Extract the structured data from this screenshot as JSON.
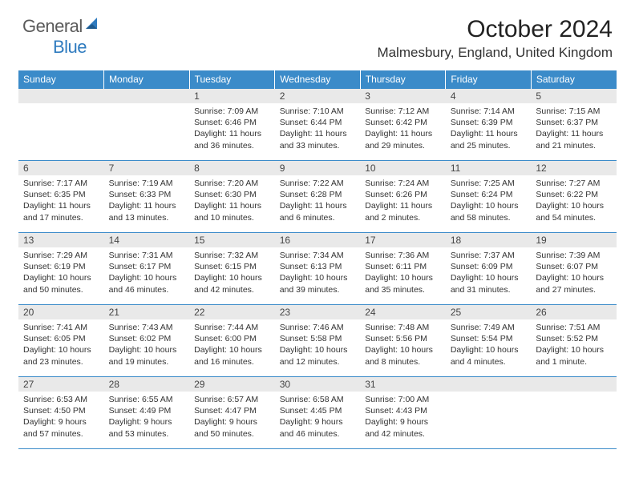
{
  "logo": {
    "general": "General",
    "blue": "Blue"
  },
  "title": "October 2024",
  "location": "Malmesbury, England, United Kingdom",
  "calendar": {
    "header_bg": "#3b8bc9",
    "daynum_bg": "#e9e9e9",
    "border_color": "#3b8bc9",
    "day_headers": [
      "Sunday",
      "Monday",
      "Tuesday",
      "Wednesday",
      "Thursday",
      "Friday",
      "Saturday"
    ],
    "weeks": [
      [
        null,
        null,
        {
          "n": "1",
          "sunrise": "7:09 AM",
          "sunset": "6:46 PM",
          "daylight": "11 hours and 36 minutes."
        },
        {
          "n": "2",
          "sunrise": "7:10 AM",
          "sunset": "6:44 PM",
          "daylight": "11 hours and 33 minutes."
        },
        {
          "n": "3",
          "sunrise": "7:12 AM",
          "sunset": "6:42 PM",
          "daylight": "11 hours and 29 minutes."
        },
        {
          "n": "4",
          "sunrise": "7:14 AM",
          "sunset": "6:39 PM",
          "daylight": "11 hours and 25 minutes."
        },
        {
          "n": "5",
          "sunrise": "7:15 AM",
          "sunset": "6:37 PM",
          "daylight": "11 hours and 21 minutes."
        }
      ],
      [
        {
          "n": "6",
          "sunrise": "7:17 AM",
          "sunset": "6:35 PM",
          "daylight": "11 hours and 17 minutes."
        },
        {
          "n": "7",
          "sunrise": "7:19 AM",
          "sunset": "6:33 PM",
          "daylight": "11 hours and 13 minutes."
        },
        {
          "n": "8",
          "sunrise": "7:20 AM",
          "sunset": "6:30 PM",
          "daylight": "11 hours and 10 minutes."
        },
        {
          "n": "9",
          "sunrise": "7:22 AM",
          "sunset": "6:28 PM",
          "daylight": "11 hours and 6 minutes."
        },
        {
          "n": "10",
          "sunrise": "7:24 AM",
          "sunset": "6:26 PM",
          "daylight": "11 hours and 2 minutes."
        },
        {
          "n": "11",
          "sunrise": "7:25 AM",
          "sunset": "6:24 PM",
          "daylight": "10 hours and 58 minutes."
        },
        {
          "n": "12",
          "sunrise": "7:27 AM",
          "sunset": "6:22 PM",
          "daylight": "10 hours and 54 minutes."
        }
      ],
      [
        {
          "n": "13",
          "sunrise": "7:29 AM",
          "sunset": "6:19 PM",
          "daylight": "10 hours and 50 minutes."
        },
        {
          "n": "14",
          "sunrise": "7:31 AM",
          "sunset": "6:17 PM",
          "daylight": "10 hours and 46 minutes."
        },
        {
          "n": "15",
          "sunrise": "7:32 AM",
          "sunset": "6:15 PM",
          "daylight": "10 hours and 42 minutes."
        },
        {
          "n": "16",
          "sunrise": "7:34 AM",
          "sunset": "6:13 PM",
          "daylight": "10 hours and 39 minutes."
        },
        {
          "n": "17",
          "sunrise": "7:36 AM",
          "sunset": "6:11 PM",
          "daylight": "10 hours and 35 minutes."
        },
        {
          "n": "18",
          "sunrise": "7:37 AM",
          "sunset": "6:09 PM",
          "daylight": "10 hours and 31 minutes."
        },
        {
          "n": "19",
          "sunrise": "7:39 AM",
          "sunset": "6:07 PM",
          "daylight": "10 hours and 27 minutes."
        }
      ],
      [
        {
          "n": "20",
          "sunrise": "7:41 AM",
          "sunset": "6:05 PM",
          "daylight": "10 hours and 23 minutes."
        },
        {
          "n": "21",
          "sunrise": "7:43 AM",
          "sunset": "6:02 PM",
          "daylight": "10 hours and 19 minutes."
        },
        {
          "n": "22",
          "sunrise": "7:44 AM",
          "sunset": "6:00 PM",
          "daylight": "10 hours and 16 minutes."
        },
        {
          "n": "23",
          "sunrise": "7:46 AM",
          "sunset": "5:58 PM",
          "daylight": "10 hours and 12 minutes."
        },
        {
          "n": "24",
          "sunrise": "7:48 AM",
          "sunset": "5:56 PM",
          "daylight": "10 hours and 8 minutes."
        },
        {
          "n": "25",
          "sunrise": "7:49 AM",
          "sunset": "5:54 PM",
          "daylight": "10 hours and 4 minutes."
        },
        {
          "n": "26",
          "sunrise": "7:51 AM",
          "sunset": "5:52 PM",
          "daylight": "10 hours and 1 minute."
        }
      ],
      [
        {
          "n": "27",
          "sunrise": "6:53 AM",
          "sunset": "4:50 PM",
          "daylight": "9 hours and 57 minutes."
        },
        {
          "n": "28",
          "sunrise": "6:55 AM",
          "sunset": "4:49 PM",
          "daylight": "9 hours and 53 minutes."
        },
        {
          "n": "29",
          "sunrise": "6:57 AM",
          "sunset": "4:47 PM",
          "daylight": "9 hours and 50 minutes."
        },
        {
          "n": "30",
          "sunrise": "6:58 AM",
          "sunset": "4:45 PM",
          "daylight": "9 hours and 46 minutes."
        },
        {
          "n": "31",
          "sunrise": "7:00 AM",
          "sunset": "4:43 PM",
          "daylight": "9 hours and 42 minutes."
        },
        null,
        null
      ]
    ],
    "label_sunrise": "Sunrise: ",
    "label_sunset": "Sunset: ",
    "label_daylight": "Daylight: "
  }
}
